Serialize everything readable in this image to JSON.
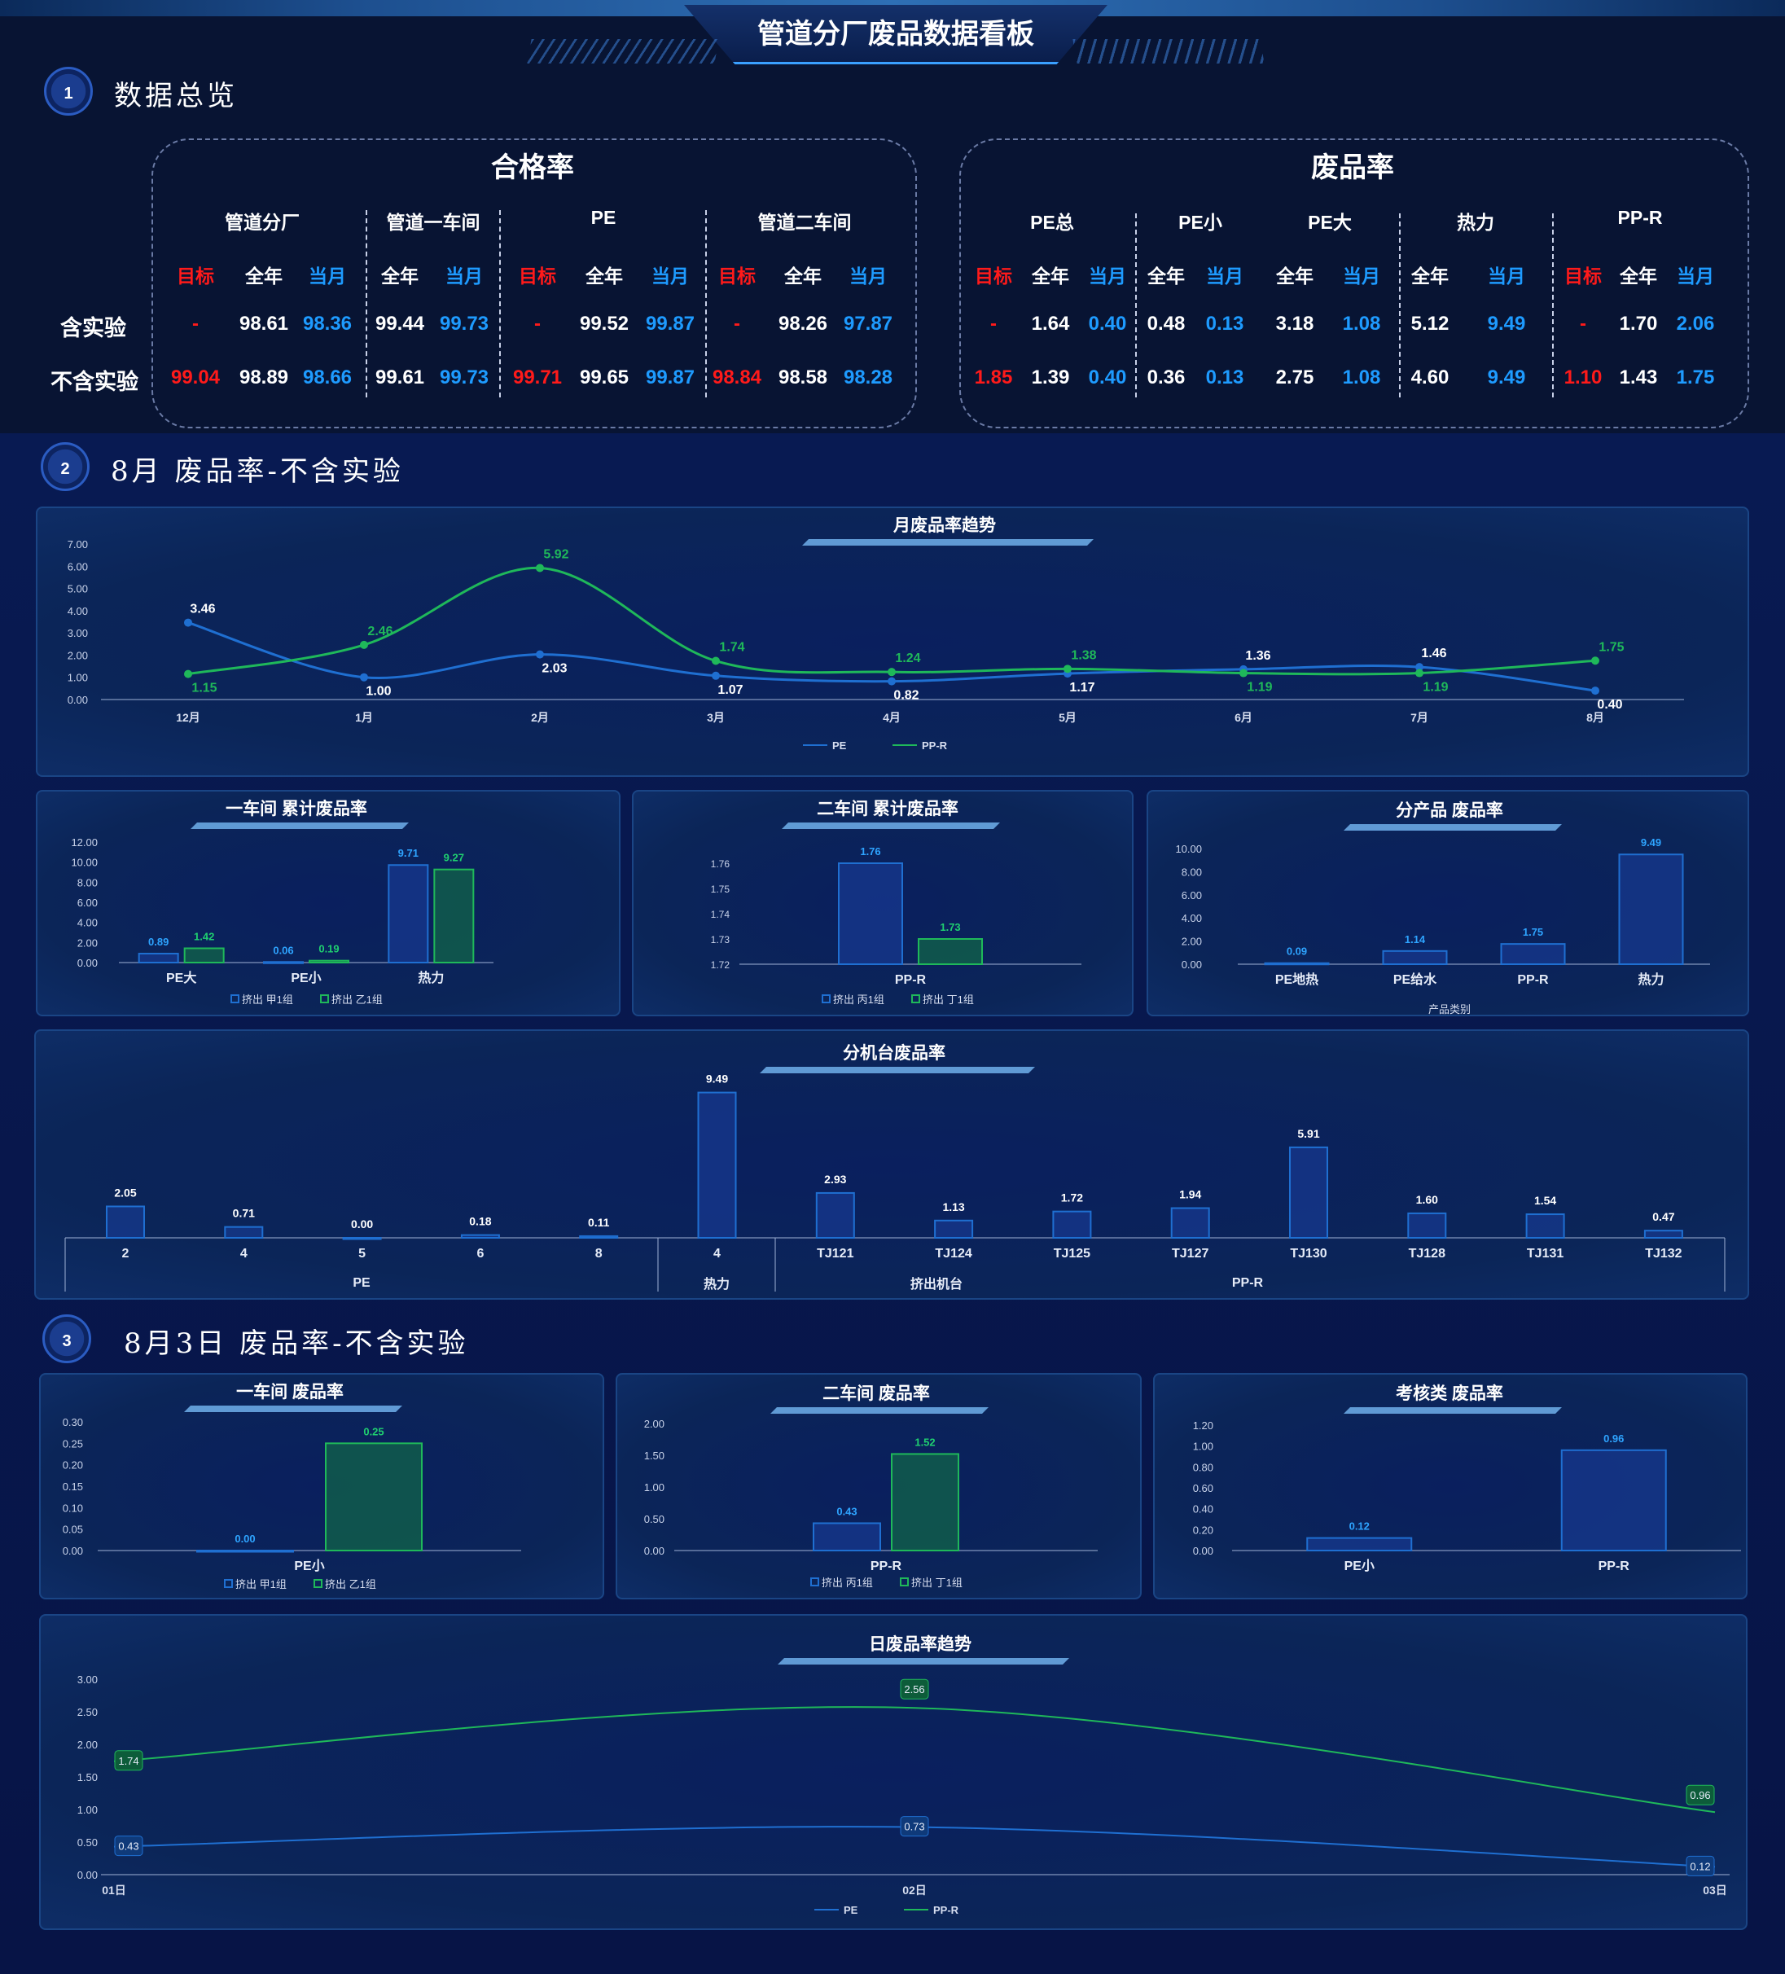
{
  "header": {
    "title": "管道分厂废品数据看板"
  },
  "sections": {
    "s1": {
      "num": "1",
      "title": "数据总览"
    },
    "s2": {
      "num": "2",
      "title": "8月 废品率-不含实验"
    },
    "s3": {
      "num": "3",
      "title": "8月3日 废品率-不含实验"
    }
  },
  "pass_rate": {
    "title": "合格率",
    "groups": [
      "管道分厂",
      "管道一车间",
      "PE",
      "管道二车间"
    ],
    "cols": [
      "目标",
      "全年",
      "当月",
      "全年",
      "当月",
      "目标",
      "全年",
      "当月",
      "目标",
      "全年",
      "当月"
    ],
    "rows": [
      {
        "label": "含实验",
        "values": [
          "-",
          "98.61",
          "98.36",
          "99.44",
          "99.73",
          "-",
          "99.52",
          "99.87",
          "-",
          "98.26",
          "97.87"
        ]
      },
      {
        "label": "不含实验",
        "values": [
          "99.04",
          "98.89",
          "98.66",
          "99.61",
          "99.73",
          "99.71",
          "99.65",
          "99.87",
          "98.84",
          "98.58",
          "98.28"
        ]
      }
    ]
  },
  "scrap_rate": {
    "title": "废品率",
    "groups": [
      "PE总",
      "PE小",
      "PE大",
      "热力",
      "PP-R"
    ],
    "cols": [
      "目标",
      "全年",
      "当月",
      "全年",
      "当月",
      "全年",
      "当月",
      "全年",
      "当月",
      "目标",
      "全年",
      "当月"
    ],
    "rows": [
      {
        "label": "含实验",
        "values": [
          "-",
          "1.64",
          "0.40",
          "0.48",
          "0.13",
          "3.18",
          "1.08",
          "5.12",
          "9.49",
          "-",
          "1.70",
          "2.06"
        ]
      },
      {
        "label": "不含实验",
        "values": [
          "1.85",
          "1.39",
          "0.40",
          "0.36",
          "0.13",
          "2.75",
          "1.08",
          "4.60",
          "9.49",
          "1.10",
          "1.43",
          "1.75"
        ]
      }
    ]
  },
  "colors": {
    "target": "#ff1a1a",
    "month": "#1e9bff",
    "pe": "#1f6fd1",
    "ppr": "#1fb85a"
  },
  "chart_data": [
    {
      "id": "monthly_trend",
      "type": "line",
      "title": "月废品率趋势",
      "categories": [
        "12月",
        "1月",
        "2月",
        "3月",
        "4月",
        "5月",
        "6月",
        "7月",
        "8月"
      ],
      "series": [
        {
          "name": "PE",
          "values": [
            3.46,
            1.0,
            2.03,
            1.07,
            0.82,
            1.17,
            1.36,
            1.46,
            0.4
          ]
        },
        {
          "name": "PP-R",
          "values": [
            1.15,
            2.46,
            5.92,
            1.74,
            1.24,
            1.38,
            1.19,
            1.19,
            1.75
          ]
        }
      ],
      "yticks": [
        "0.00",
        "1.00",
        "2.00",
        "3.00",
        "4.00",
        "5.00",
        "6.00",
        "7.00"
      ],
      "ylim": [
        0,
        7
      ]
    },
    {
      "id": "ws1_cum",
      "type": "bar",
      "title": "一车间 累计废品率",
      "categories": [
        "PE大",
        "PE小",
        "热力"
      ],
      "series": [
        {
          "name": "挤出 甲1组",
          "values": [
            0.89,
            0.06,
            9.71
          ]
        },
        {
          "name": "挤出 乙1组",
          "values": [
            1.42,
            0.19,
            9.27
          ]
        }
      ],
      "yticks": [
        "0.00",
        "2.00",
        "4.00",
        "6.00",
        "8.00",
        "10.00",
        "12.00"
      ],
      "ylim": [
        0,
        12
      ]
    },
    {
      "id": "ws2_cum",
      "type": "bar",
      "title": "二车间 累计废品率",
      "categories": [
        "PP-R"
      ],
      "series": [
        {
          "name": "挤出 丙1组",
          "values": [
            1.76
          ]
        },
        {
          "name": "挤出 丁1组",
          "values": [
            1.73
          ]
        }
      ],
      "yticks": [
        "1.72",
        "1.73",
        "1.74",
        "1.75",
        "1.76"
      ],
      "ylim": [
        1.72,
        1.76
      ]
    },
    {
      "id": "by_product",
      "type": "bar",
      "title": "分产品 废品率",
      "xlabel": "产品类别",
      "categories": [
        "PE地热",
        "PE给水",
        "PP-R",
        "热力"
      ],
      "series": [
        {
          "values": [
            0.09,
            1.14,
            1.75,
            9.49
          ]
        }
      ],
      "yticks": [
        "0.00",
        "2.00",
        "4.00",
        "6.00",
        "8.00",
        "10.00"
      ],
      "ylim": [
        0,
        10
      ]
    },
    {
      "id": "by_machine",
      "type": "bar",
      "title": "分机台废品率",
      "categories": [
        "2",
        "4",
        "5",
        "6",
        "8",
        "4",
        "TJ121",
        "TJ124",
        "TJ125",
        "TJ127",
        "TJ130",
        "TJ128",
        "TJ131",
        "TJ132"
      ],
      "values": [
        2.05,
        0.71,
        0.0,
        0.18,
        0.11,
        9.49,
        2.93,
        1.13,
        1.72,
        1.94,
        5.91,
        1.6,
        1.54,
        0.47
      ],
      "groups": [
        {
          "label": "PE",
          "from": 0,
          "to": 4
        },
        {
          "label": "热力",
          "from": 5,
          "to": 5
        },
        {
          "label": "PP-R",
          "from": 6,
          "to": 13
        }
      ],
      "group2": "挤出机台",
      "ylim": [
        0,
        10
      ]
    },
    {
      "id": "ws1_day",
      "type": "bar",
      "title": "一车间 废品率",
      "categories": [
        "PE小"
      ],
      "series": [
        {
          "name": "挤出 甲1组",
          "values": [
            0.0
          ]
        },
        {
          "name": "挤出 乙1组",
          "values": [
            0.25
          ]
        }
      ],
      "yticks": [
        "0.00",
        "0.05",
        "0.10",
        "0.15",
        "0.20",
        "0.25",
        "0.30"
      ],
      "ylim": [
        0,
        0.3
      ]
    },
    {
      "id": "ws2_day",
      "type": "bar",
      "title": "二车间 废品率",
      "categories": [
        "PP-R"
      ],
      "series": [
        {
          "name": "挤出 丙1组",
          "values": [
            0.43
          ]
        },
        {
          "name": "挤出 丁1组",
          "values": [
            1.52
          ]
        }
      ],
      "yticks": [
        "0.00",
        "0.50",
        "1.00",
        "1.50",
        "2.00"
      ],
      "ylim": [
        0,
        2
      ]
    },
    {
      "id": "assess_day",
      "type": "bar",
      "title": "考核类 废品率",
      "categories": [
        "PE小",
        "PP-R"
      ],
      "series": [
        {
          "values": [
            0.12,
            0.96
          ]
        }
      ],
      "yticks": [
        "0.00",
        "0.20",
        "0.40",
        "0.60",
        "0.80",
        "1.00",
        "1.20"
      ],
      "ylim": [
        0,
        1.2
      ]
    },
    {
      "id": "daily_trend",
      "type": "line",
      "title": "日废品率趋势",
      "categories": [
        "01日",
        "02日",
        "03日"
      ],
      "series": [
        {
          "name": "PE",
          "values": [
            0.43,
            0.73,
            0.12
          ]
        },
        {
          "name": "PP-R",
          "values": [
            1.74,
            2.56,
            0.96
          ]
        }
      ],
      "yticks": [
        "0.00",
        "0.50",
        "1.00",
        "1.50",
        "2.00",
        "2.50",
        "3.00"
      ],
      "ylim": [
        0,
        3
      ]
    }
  ]
}
